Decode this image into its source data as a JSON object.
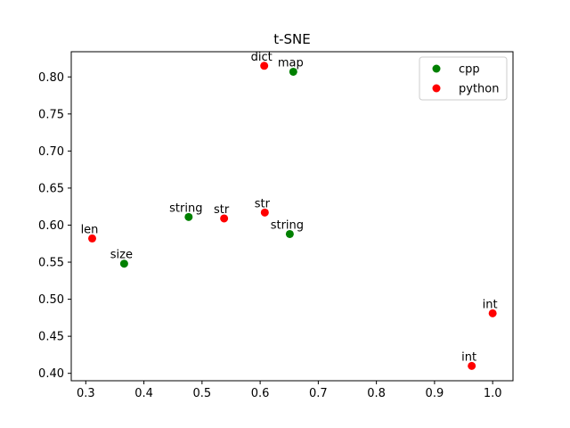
{
  "chart_data": {
    "type": "scatter",
    "title": "t-SNE",
    "xlabel": "",
    "ylabel": "",
    "xlim": [
      0.275,
      1.035
    ],
    "ylim": [
      0.39,
      0.834
    ],
    "xticks": [
      "0.3",
      "0.4",
      "0.5",
      "0.6",
      "0.7",
      "0.8",
      "0.9",
      "1.0"
    ],
    "xtick_values": [
      0.3,
      0.4,
      0.5,
      0.6,
      0.7,
      0.8,
      0.9,
      1.0
    ],
    "yticks": [
      "0.40",
      "0.45",
      "0.50",
      "0.55",
      "0.60",
      "0.65",
      "0.70",
      "0.75",
      "0.80"
    ],
    "ytick_values": [
      0.4,
      0.45,
      0.5,
      0.55,
      0.6,
      0.65,
      0.7,
      0.75,
      0.8
    ],
    "grid": false,
    "legend_position": "top-right",
    "series": [
      {
        "name": "cpp",
        "color": "#008000",
        "points": [
          {
            "x": 0.657,
            "y": 0.807,
            "label": "map"
          },
          {
            "x": 0.477,
            "y": 0.611,
            "label": "string"
          },
          {
            "x": 0.651,
            "y": 0.588,
            "label": "string"
          },
          {
            "x": 0.366,
            "y": 0.548,
            "label": "size"
          }
        ]
      },
      {
        "name": "python",
        "color": "#ff0000",
        "points": [
          {
            "x": 0.607,
            "y": 0.815,
            "label": "dict"
          },
          {
            "x": 0.538,
            "y": 0.609,
            "label": "str"
          },
          {
            "x": 0.608,
            "y": 0.617,
            "label": "str"
          },
          {
            "x": 0.311,
            "y": 0.582,
            "label": "len"
          },
          {
            "x": 1.0,
            "y": 0.481,
            "label": "int"
          },
          {
            "x": 0.964,
            "y": 0.41,
            "label": "int"
          }
        ]
      }
    ]
  }
}
